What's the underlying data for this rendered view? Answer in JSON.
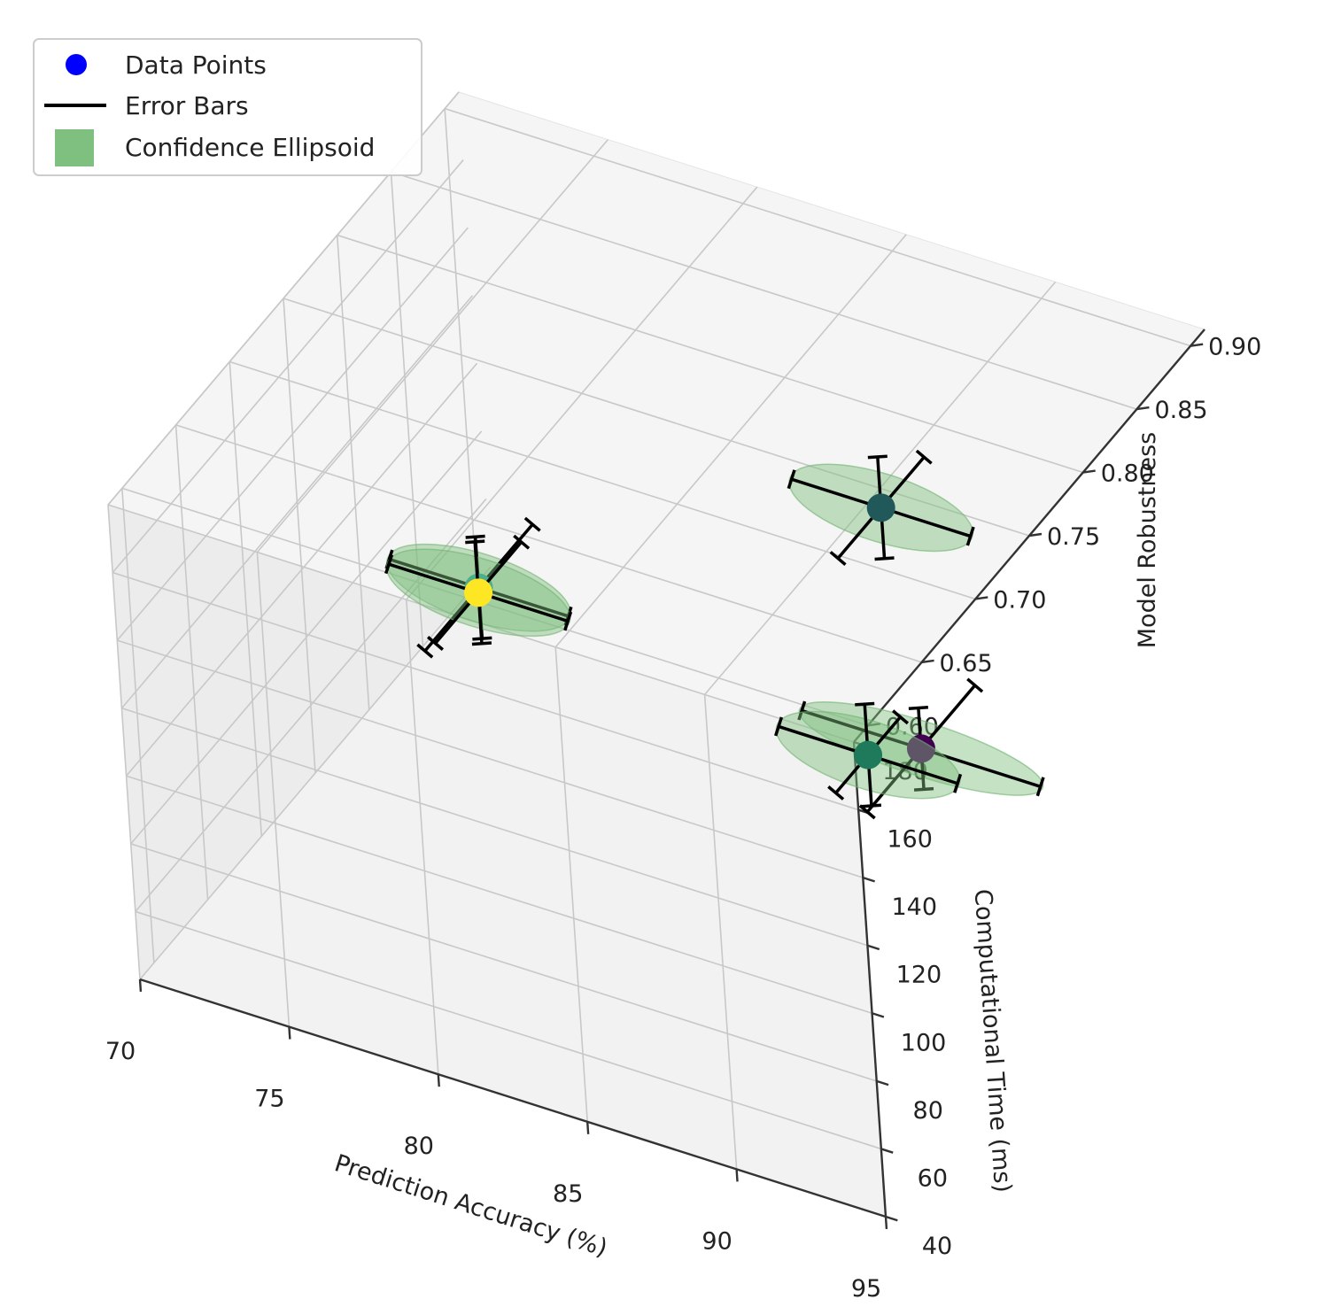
{
  "chart_data": {
    "type": "scatter",
    "projection": "3d",
    "xlabel": "Prediction Accuracy (%)",
    "ylabel": "Computational Time (ms)",
    "zlabel": "Model Robustness",
    "xlim": [
      70,
      95
    ],
    "ylim": [
      40,
      180
    ],
    "zlim": [
      0.6,
      0.9
    ],
    "x_ticks": [
      70,
      75,
      80,
      85,
      90,
      95
    ],
    "y_ticks": [
      40,
      60,
      80,
      100,
      120,
      140,
      160,
      180
    ],
    "z_ticks": [
      0.6,
      0.65,
      0.7,
      0.75,
      0.8,
      0.85,
      0.9
    ],
    "x_tick_labels": [
      "70",
      "75",
      "80",
      "85",
      "90",
      "95"
    ],
    "y_tick_labels": [
      "40",
      "60",
      "80",
      "100",
      "120",
      "140",
      "160",
      "180"
    ],
    "z_tick_labels": [
      "0.60",
      "0.65",
      "0.70",
      "0.75",
      "0.80",
      "0.85",
      "0.90"
    ],
    "grid": true,
    "legend": {
      "position": "top-left",
      "entries": [
        {
          "label": "Data Points",
          "marker": "circle",
          "color": "#0000ff"
        },
        {
          "label": "Error Bars",
          "marker": "line",
          "color": "#000000"
        },
        {
          "label": "Confidence Ellipsoid",
          "marker": "patch",
          "color": "#7fbf7f"
        }
      ]
    },
    "points": [
      {
        "x": 92,
        "y": 120,
        "z": 0.72,
        "color": "#440154",
        "ex": 4,
        "ey": 12,
        "ez": 0.05
      },
      {
        "x": 88,
        "y": 150,
        "z": 0.8,
        "color": "#21585a",
        "ex": 3,
        "ey": 15,
        "ez": 0.04
      },
      {
        "x": 85,
        "y": 50,
        "z": 0.85,
        "color": "#1e7a5a",
        "ex": 3,
        "ey": 15,
        "ez": 0.03
      },
      {
        "x": 80,
        "y": 160,
        "z": 0.65,
        "color": "#22a19a",
        "ex": 3,
        "ey": 15,
        "ez": 0.05
      },
      {
        "x": 76,
        "y": 110,
        "z": 0.75,
        "color": "#fde725",
        "ex": 3,
        "ey": 15,
        "ez": 0.04
      }
    ]
  }
}
